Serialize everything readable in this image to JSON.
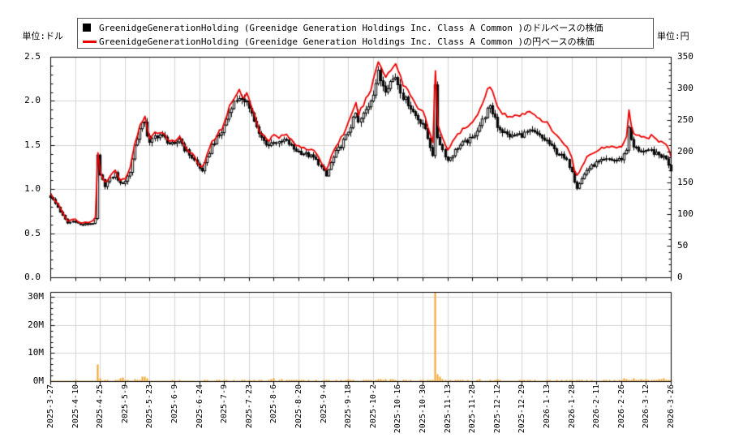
{
  "axes": {
    "left_unit_label": "単位:ドル",
    "right_unit_label": "単位:円",
    "left_ticks": [
      "0.0",
      "0.5",
      "1.0",
      "1.5",
      "2.0",
      "2.5"
    ],
    "left_range": [
      0,
      2.5
    ],
    "right_ticks": [
      "0",
      "50",
      "100",
      "150",
      "200",
      "250",
      "300",
      "350"
    ],
    "right_range": [
      0,
      350
    ],
    "volume_ticks": [
      "0M",
      "10M",
      "20M",
      "30M"
    ],
    "volume_range_m": [
      0,
      31.8
    ]
  },
  "legend": {
    "items": [
      {
        "marker": "black-square",
        "color": "#000000",
        "label": "GreenidgeGenerationHolding (Greenidge Generation Holdings Inc. Class A Common )のドルベースの株価"
      },
      {
        "marker": "red-line",
        "color": "#ee0000",
        "label": "GreenidgeGenerationHolding (Greenidge Generation Holdings Inc. Class A Common )の円ベースの株価"
      }
    ]
  },
  "colors": {
    "candle": "#000000",
    "candle_up_fill": "#ffffff",
    "yen_line": "#ee0000",
    "volume_bar": "#f0a32a",
    "grid": "#d3d3d3",
    "axis": "#000000",
    "text": "#000000",
    "legend_border": "#555555"
  },
  "chart_data": [
    {
      "type": "candlestick+line",
      "title": "",
      "x_tick_labels": [
        "2025-3-27",
        "2025-4-10",
        "2025-4-25",
        "2025-5-9",
        "2025-5-23",
        "2025-6-9",
        "2025-6-24",
        "2025-7-9",
        "2025-7-23",
        "2025-8-6",
        "2025-8-20",
        "2025-9-4",
        "2025-9-18",
        "2025-10-2",
        "2025-10-16",
        "2025-10-30",
        "2025-11-13",
        "2025-11-28",
        "2025-12-12",
        "2025-12-29",
        "2026-1-13",
        "2026-1-28",
        "2026-2-11",
        "2026-2-26",
        "2026-3-12",
        "2026-3-26"
      ],
      "trading_days_per_tick_interval": 10,
      "grid": true,
      "legend_position": "top-center",
      "series": [
        {
          "name": "GreenidgeGenerationHolding (Greenidge Generation Holdings Inc. Class A Common )のドルベースの株価",
          "type": "candlestick",
          "axis": "left",
          "unit": "USD",
          "ylim": [
            0,
            2.5
          ],
          "close_keypoints": [
            [
              0,
              0.92
            ],
            [
              0.1,
              0.88
            ],
            [
              0.3,
              0.8
            ],
            [
              0.5,
              0.7
            ],
            [
              0.7,
              0.62
            ],
            [
              0.9,
              0.64
            ],
            [
              1.0,
              0.64
            ],
            [
              1.2,
              0.6
            ],
            [
              1.5,
              0.61
            ],
            [
              1.7,
              0.62
            ],
            [
              1.85,
              0.68
            ],
            [
              1.9,
              1.38
            ],
            [
              2.0,
              1.15
            ],
            [
              2.2,
              1.05
            ],
            [
              2.4,
              1.12
            ],
            [
              2.6,
              1.18
            ],
            [
              2.8,
              1.06
            ],
            [
              3.0,
              1.1
            ],
            [
              3.2,
              1.2
            ],
            [
              3.4,
              1.5
            ],
            [
              3.6,
              1.68
            ],
            [
              3.8,
              1.78
            ],
            [
              3.9,
              1.62
            ],
            [
              4.0,
              1.52
            ],
            [
              4.2,
              1.6
            ],
            [
              4.4,
              1.62
            ],
            [
              4.6,
              1.58
            ],
            [
              4.8,
              1.52
            ],
            [
              5.0,
              1.5
            ],
            [
              5.2,
              1.58
            ],
            [
              5.4,
              1.46
            ],
            [
              5.6,
              1.4
            ],
            [
              5.8,
              1.33
            ],
            [
              6.0,
              1.24
            ],
            [
              6.1,
              1.22
            ],
            [
              6.3,
              1.35
            ],
            [
              6.5,
              1.5
            ],
            [
              6.7,
              1.58
            ],
            [
              6.9,
              1.65
            ],
            [
              7.1,
              1.8
            ],
            [
              7.3,
              1.95
            ],
            [
              7.5,
              2.02
            ],
            [
              7.6,
              2.05
            ],
            [
              7.8,
              1.96
            ],
            [
              7.9,
              2.02
            ],
            [
              8.0,
              1.95
            ],
            [
              8.2,
              1.78
            ],
            [
              8.4,
              1.62
            ],
            [
              8.6,
              1.55
            ],
            [
              8.8,
              1.5
            ],
            [
              9.0,
              1.55
            ],
            [
              9.2,
              1.52
            ],
            [
              9.4,
              1.56
            ],
            [
              9.6,
              1.52
            ],
            [
              9.8,
              1.46
            ],
            [
              10.0,
              1.43
            ],
            [
              10.3,
              1.4
            ],
            [
              10.6,
              1.36
            ],
            [
              10.8,
              1.3
            ],
            [
              11.0,
              1.2
            ],
            [
              11.1,
              1.15
            ],
            [
              11.3,
              1.3
            ],
            [
              11.5,
              1.42
            ],
            [
              11.7,
              1.5
            ],
            [
              11.9,
              1.6
            ],
            [
              12.1,
              1.72
            ],
            [
              12.3,
              1.86
            ],
            [
              12.4,
              1.75
            ],
            [
              12.6,
              1.85
            ],
            [
              12.8,
              1.95
            ],
            [
              13.0,
              2.1
            ],
            [
              13.2,
              2.32
            ],
            [
              13.3,
              2.24
            ],
            [
              13.5,
              2.14
            ],
            [
              13.7,
              2.22
            ],
            [
              13.9,
              2.28
            ],
            [
              14.0,
              2.2
            ],
            [
              14.2,
              2.05
            ],
            [
              14.4,
              1.98
            ],
            [
              14.6,
              1.88
            ],
            [
              14.8,
              1.8
            ],
            [
              15.0,
              1.75
            ],
            [
              15.2,
              1.58
            ],
            [
              15.4,
              1.4
            ],
            [
              15.5,
              2.15
            ],
            [
              15.6,
              1.6
            ],
            [
              15.8,
              1.45
            ],
            [
              16.0,
              1.33
            ],
            [
              16.2,
              1.4
            ],
            [
              16.4,
              1.48
            ],
            [
              16.6,
              1.52
            ],
            [
              16.8,
              1.55
            ],
            [
              17.0,
              1.58
            ],
            [
              17.2,
              1.68
            ],
            [
              17.4,
              1.78
            ],
            [
              17.6,
              1.9
            ],
            [
              17.7,
              1.92
            ],
            [
              17.9,
              1.82
            ],
            [
              18.0,
              1.72
            ],
            [
              18.2,
              1.66
            ],
            [
              18.4,
              1.62
            ],
            [
              18.6,
              1.6
            ],
            [
              18.8,
              1.62
            ],
            [
              19.0,
              1.62
            ],
            [
              19.2,
              1.65
            ],
            [
              19.4,
              1.65
            ],
            [
              19.6,
              1.62
            ],
            [
              19.8,
              1.58
            ],
            [
              20.0,
              1.55
            ],
            [
              20.2,
              1.48
            ],
            [
              20.4,
              1.42
            ],
            [
              20.6,
              1.38
            ],
            [
              20.8,
              1.32
            ],
            [
              21.0,
              1.22
            ],
            [
              21.1,
              1.1
            ],
            [
              21.2,
              1.03
            ],
            [
              21.4,
              1.12
            ],
            [
              21.6,
              1.22
            ],
            [
              21.8,
              1.26
            ],
            [
              22.0,
              1.3
            ],
            [
              22.2,
              1.32
            ],
            [
              22.5,
              1.34
            ],
            [
              22.8,
              1.33
            ],
            [
              23.0,
              1.35
            ],
            [
              23.2,
              1.45
            ],
            [
              23.3,
              1.72
            ],
            [
              23.4,
              1.55
            ],
            [
              23.5,
              1.48
            ],
            [
              23.7,
              1.45
            ],
            [
              24.0,
              1.42
            ],
            [
              24.2,
              1.44
            ],
            [
              24.4,
              1.4
            ],
            [
              24.6,
              1.38
            ],
            [
              24.8,
              1.36
            ],
            [
              25.0,
              1.22
            ]
          ]
        },
        {
          "name": "GreenidgeGenerationHolding (Greenidge Generation Holdings Inc. Class A Common )の円ベースの株価",
          "type": "line",
          "axis": "right",
          "unit": "JPY",
          "ylim": [
            0,
            350
          ],
          "fx_rate_keypoints": [
            [
              0,
              145
            ],
            [
              3,
              144
            ],
            [
              6,
              143
            ],
            [
              9,
              146
            ],
            [
              12,
              148
            ],
            [
              13.5,
              149
            ],
            [
              15,
              151
            ],
            [
              16,
              153
            ],
            [
              17,
              155
            ],
            [
              18,
              158
            ],
            [
              19,
              159
            ],
            [
              20,
              158
            ],
            [
              21,
              157
            ],
            [
              22,
              156
            ],
            [
              23,
              155
            ],
            [
              24,
              156
            ],
            [
              25,
              157
            ]
          ]
        }
      ]
    },
    {
      "type": "bar",
      "name": "volume",
      "unit": "shares",
      "ylim_m": [
        0,
        31.8
      ],
      "volume_keypoints_m": [
        [
          0,
          0.25
        ],
        [
          0.5,
          0.2
        ],
        [
          1.0,
          0.3
        ],
        [
          1.5,
          0.15
        ],
        [
          1.8,
          0.3
        ],
        [
          1.9,
          6.0
        ],
        [
          2.0,
          1.3
        ],
        [
          2.1,
          0.5
        ],
        [
          2.5,
          0.3
        ],
        [
          2.9,
          1.0
        ],
        [
          3.0,
          0.4
        ],
        [
          3.3,
          0.5
        ],
        [
          3.6,
          0.8
        ],
        [
          3.7,
          1.6
        ],
        [
          3.8,
          1.8
        ],
        [
          3.9,
          1.5
        ],
        [
          4.0,
          0.6
        ],
        [
          4.5,
          0.3
        ],
        [
          5.0,
          0.35
        ],
        [
          5.5,
          0.3
        ],
        [
          6.0,
          0.4
        ],
        [
          6.5,
          0.55
        ],
        [
          7.0,
          0.45
        ],
        [
          7.4,
          0.6
        ],
        [
          8.0,
          0.4
        ],
        [
          8.5,
          0.45
        ],
        [
          9.0,
          0.8
        ],
        [
          9.4,
          0.6
        ],
        [
          10.0,
          0.55
        ],
        [
          10.5,
          0.4
        ],
        [
          11.0,
          0.45
        ],
        [
          11.5,
          0.5
        ],
        [
          12.0,
          0.6
        ],
        [
          12.5,
          0.5
        ],
        [
          13.0,
          0.55
        ],
        [
          13.5,
          0.6
        ],
        [
          14.0,
          0.5
        ],
        [
          14.5,
          0.45
        ],
        [
          15.0,
          0.4
        ],
        [
          15.4,
          0.5
        ],
        [
          15.5,
          31.8
        ],
        [
          15.6,
          2.6
        ],
        [
          15.7,
          1.6
        ],
        [
          15.8,
          1.2
        ],
        [
          16.0,
          0.8
        ],
        [
          16.5,
          0.5
        ],
        [
          17.0,
          0.45
        ],
        [
          17.5,
          0.5
        ],
        [
          18.0,
          0.55
        ],
        [
          18.5,
          0.4
        ],
        [
          19.0,
          0.5
        ],
        [
          19.5,
          0.45
        ],
        [
          20.0,
          0.6
        ],
        [
          20.5,
          0.4
        ],
        [
          21.0,
          0.5
        ],
        [
          21.5,
          0.45
        ],
        [
          22.0,
          0.5
        ],
        [
          22.5,
          0.4
        ],
        [
          23.0,
          0.8
        ],
        [
          23.1,
          1.0
        ],
        [
          23.2,
          1.1
        ],
        [
          23.4,
          0.8
        ],
        [
          23.8,
          0.9
        ],
        [
          24.0,
          0.6
        ],
        [
          24.5,
          0.7
        ],
        [
          24.9,
          0.9
        ],
        [
          25.0,
          0.6
        ]
      ]
    }
  ]
}
